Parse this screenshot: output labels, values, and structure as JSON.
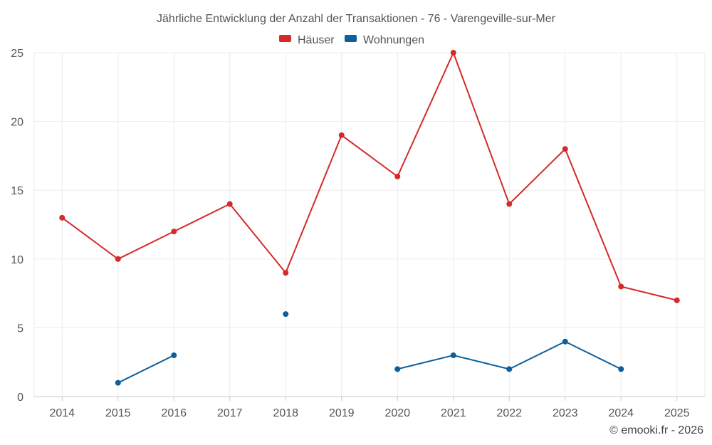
{
  "chart_data": {
    "type": "line",
    "title": "Jährliche Entwicklung der Anzahl der Transaktionen - 76 - Varengeville-sur-Mer",
    "categories": [
      "2014",
      "2015",
      "2016",
      "2017",
      "2018",
      "2019",
      "2020",
      "2021",
      "2022",
      "2023",
      "2024",
      "2025"
    ],
    "series": [
      {
        "name": "Häuser",
        "color": "#d42a2a",
        "values": [
          13,
          10,
          12,
          14,
          9,
          19,
          16,
          25,
          14,
          18,
          8,
          7
        ]
      },
      {
        "name": "Wohnungen",
        "color": "#0e5f9c",
        "values": [
          null,
          1,
          3,
          null,
          6,
          null,
          2,
          3,
          2,
          4,
          2,
          null
        ]
      }
    ],
    "ylim": [
      0,
      25
    ],
    "yticks": [
      0,
      5,
      10,
      15,
      20,
      25
    ],
    "xlabel": "",
    "ylabel": "",
    "legend_position": "top-center",
    "grid": true
  },
  "credit": "© emooki.fr - 2026"
}
